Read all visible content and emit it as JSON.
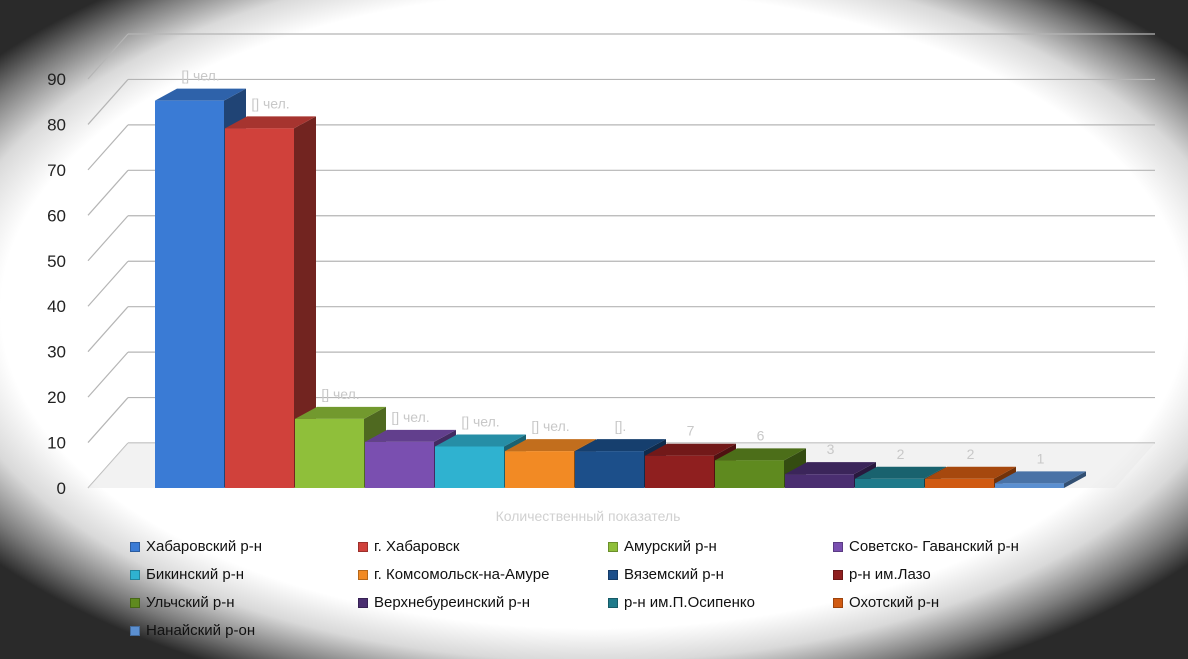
{
  "chart_data": {
    "type": "bar",
    "xlabel": "Количественный показатель",
    "ylim": [
      0,
      90
    ],
    "yticks": [
      0,
      10,
      20,
      30,
      40,
      50,
      60,
      70,
      80,
      90
    ],
    "grid": true,
    "legend_position": "bottom",
    "series": [
      {
        "name": "Хабаровский  р-н",
        "value": 84,
        "label": "[] чел.",
        "color": "#3a7bd5"
      },
      {
        "name": "г. Хабаровск",
        "value": 78,
        "label": "[] чел.",
        "color": "#d0413b"
      },
      {
        "name": "Амурский р-н",
        "value": 15,
        "label": "[] чел.",
        "color": "#8fbf3a"
      },
      {
        "name": "Советско- Гаванский р-н",
        "value": 10,
        "label": "[] чел.",
        "color": "#7a4fb0"
      },
      {
        "name": "Бикинский р-н",
        "value": 9,
        "label": "[] чел.",
        "color": "#2fb2d0"
      },
      {
        "name": "г. Комсомольск-на-Амуре",
        "value": 8,
        "label": "[] чел.",
        "color": "#f28a24"
      },
      {
        "name": "Вяземский р-н",
        "value": 8,
        "label": "[].",
        "color": "#1c4f8a"
      },
      {
        "name": "р-н им.Лазо",
        "value": 7,
        "label": "7",
        "color": "#8f1f1f"
      },
      {
        "name": "Ульчский р-н",
        "value": 6,
        "label": "6",
        "color": "#5f8a1f"
      },
      {
        "name": "Верхнебуреинский р-н",
        "value": 3,
        "label": "3",
        "color": "#4a2e70"
      },
      {
        "name": "р-н им.П.Осипенко",
        "value": 2,
        "label": "2",
        "color": "#1f7a8a"
      },
      {
        "name": "Охотский р-н",
        "value": 2,
        "label": "2",
        "color": "#d05a12"
      },
      {
        "name": "Нанайский р-он",
        "value": 1,
        "label": "1",
        "color": "#5b8fd0"
      }
    ]
  }
}
